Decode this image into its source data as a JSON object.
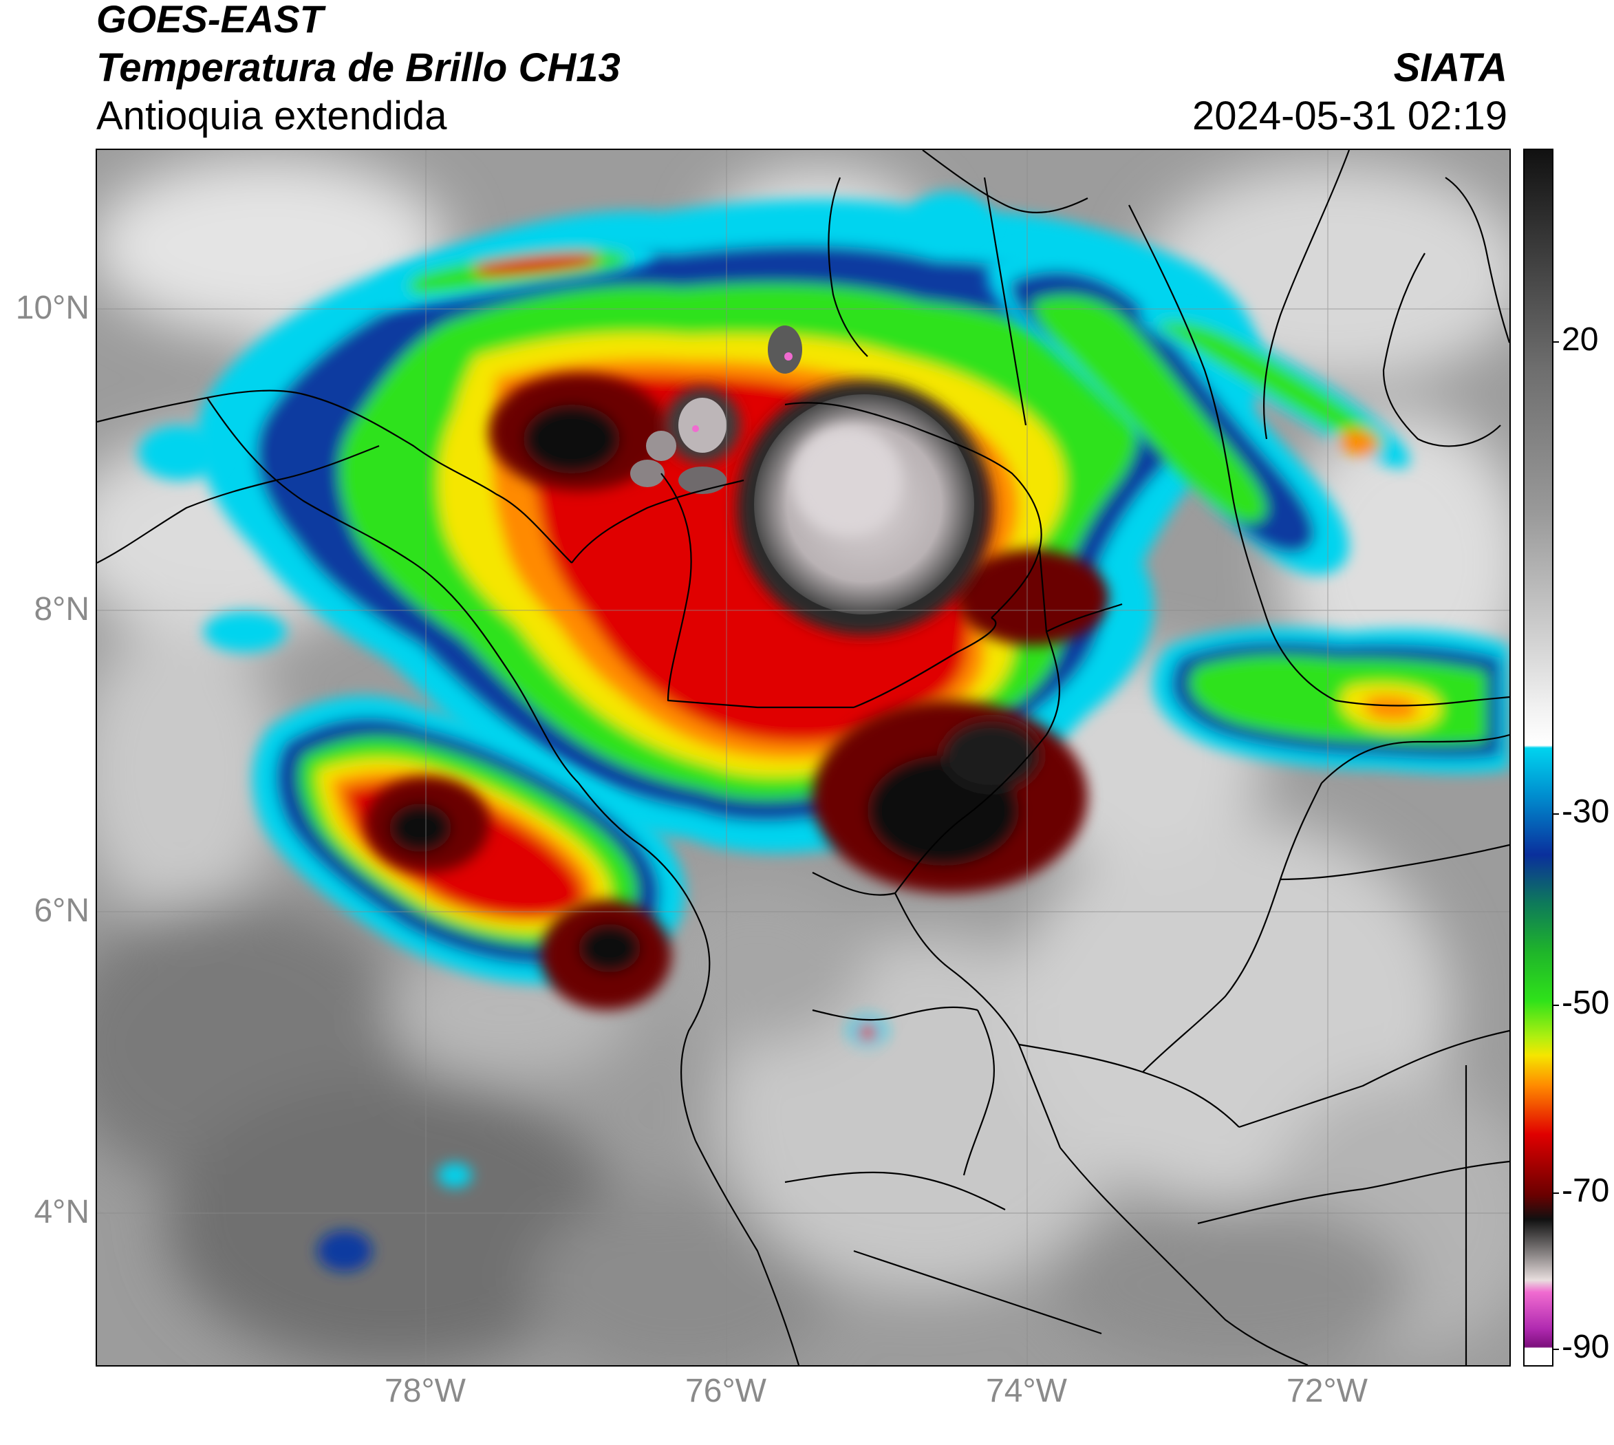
{
  "title": {
    "satellite": "GOES-EAST",
    "product": "Temperatura de Brillo CH13",
    "region": "Antioquia extendida",
    "organization": "SIATA",
    "datetime": "2024-05-31 02:19"
  },
  "map": {
    "lat_ticks": [
      "10°N",
      "8°N",
      "6°N",
      "4°N"
    ],
    "lon_ticks": [
      "78°W",
      "76°W",
      "74°W",
      "72°W"
    ],
    "extent": {
      "lon_min": -80.0,
      "lon_max": -70.6,
      "lat_min": 2.6,
      "lat_max": 11.05
    },
    "gridlines": true,
    "background": "brightness temperature field (clouds)",
    "storm_systems": [
      {
        "lon": -75.6,
        "lat": 8.9,
        "core_temp_c": -80,
        "description": "large overshooting cold cloud top"
      },
      {
        "lon": -74.9,
        "lat": 6.6,
        "core_temp_c": -70
      },
      {
        "lon": -77.9,
        "lat": 6.4,
        "core_temp_c": -70
      },
      {
        "lon": -77.3,
        "lat": 9.2,
        "core_temp_c": -70
      },
      {
        "lon": -71.4,
        "lat": 7.6,
        "core_temp_c": -50
      }
    ]
  },
  "colorbar": {
    "ticks": [
      "20",
      "-30",
      "-50",
      "-70",
      "-90"
    ],
    "tick_values": [
      20,
      -30,
      -50,
      -70,
      -90
    ],
    "range": [
      -90,
      35
    ],
    "colors": {
      "warm": "#6e6e6e",
      "light": "#f2f2f2",
      "cyan": "#00d4ef",
      "blue": "#0a2f9c",
      "teal": "#0e7a5a",
      "green": "#2fe21a",
      "yellow": "#f5e600",
      "orange": "#ff8a00",
      "red": "#e00000",
      "darkred": "#6a0000",
      "black": "#111111",
      "grey": "#b9b3b3",
      "pink": "#f06bd0",
      "purple": "#7c0f7c",
      "white": "#ffffff"
    }
  }
}
